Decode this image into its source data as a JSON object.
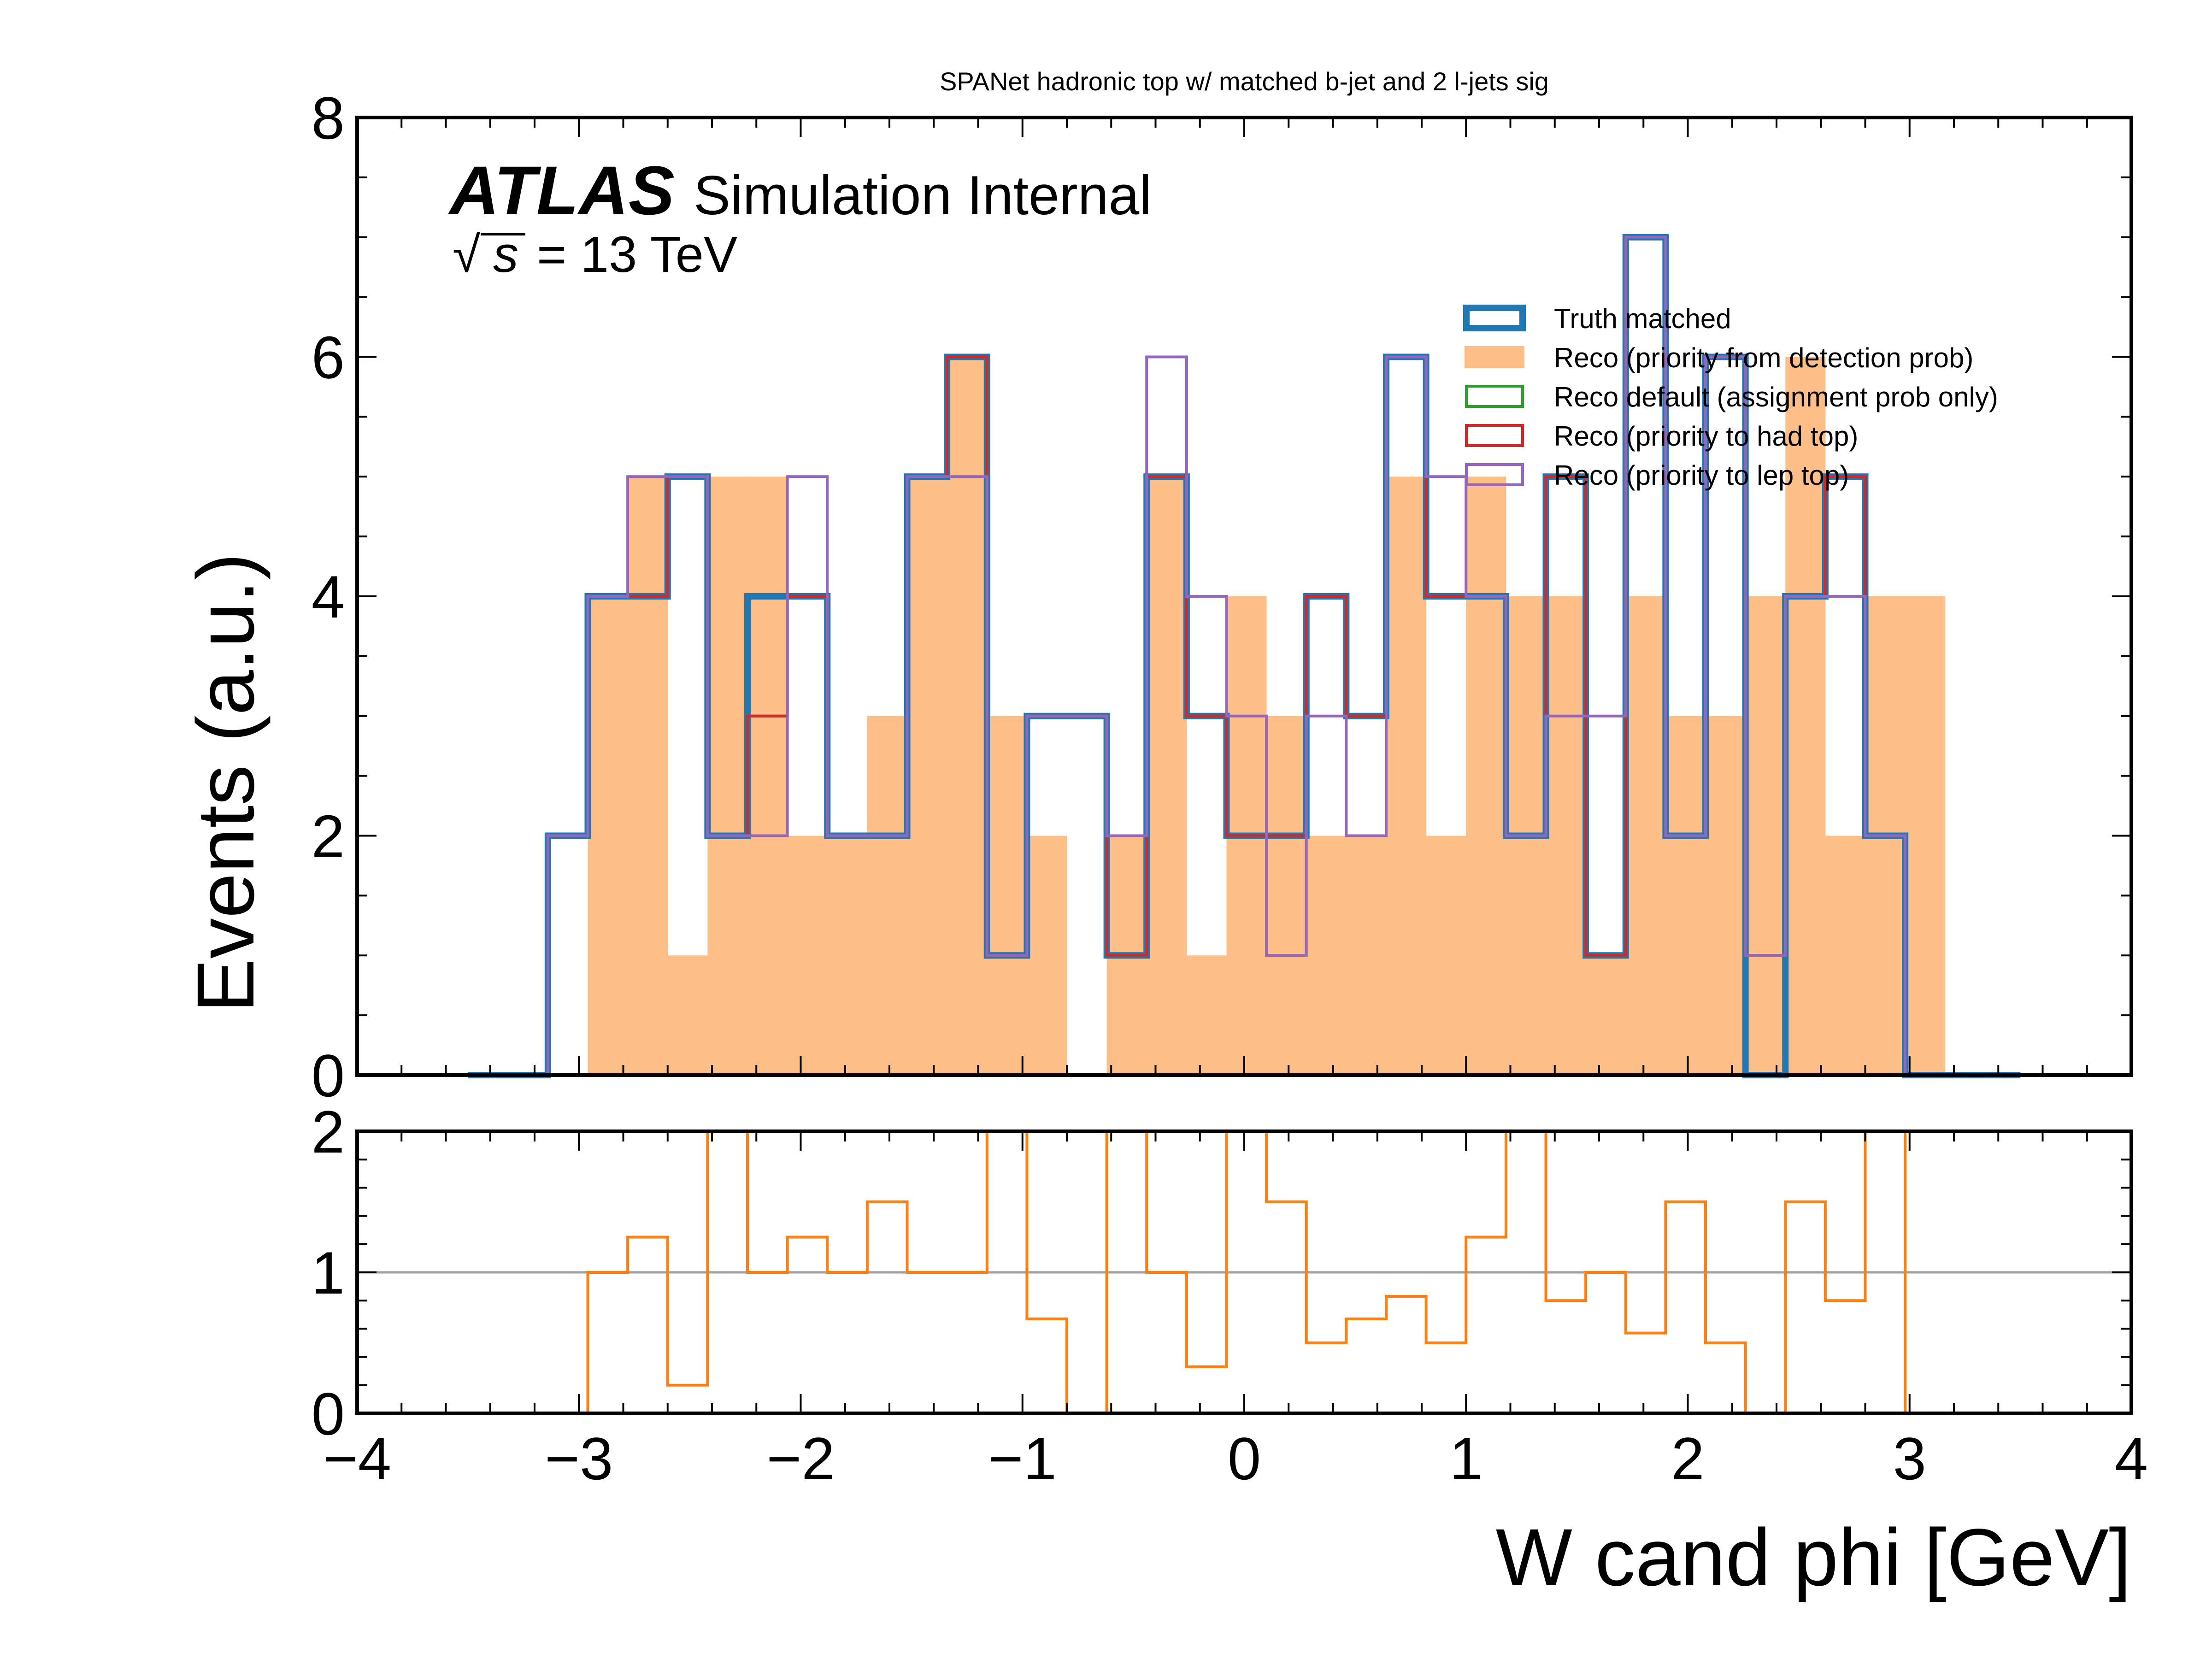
{
  "chart_data": {
    "type": "histogram",
    "title": "SPANet hadronic top w/ matched b-jet and 2 l-jets sig",
    "xlabel": "W cand phi [GeV]",
    "ylabel": "Events (a.u.)",
    "atlas_label": "ATLAS",
    "atlas_sublabel": "Simulation Internal",
    "energy_label": "= 13 TeV",
    "energy_symbol": "s",
    "xlim": [
      -4,
      4
    ],
    "ylim": [
      0,
      8
    ],
    "ratio_ylim": [
      0,
      2
    ],
    "x_ticks": [
      "−4",
      "−3",
      "−2",
      "−1",
      "0",
      "1",
      "2",
      "3",
      "4"
    ],
    "y_ticks": [
      "0",
      "2",
      "4",
      "6",
      "8"
    ],
    "ratio_y_ticks": [
      "0",
      "1",
      "2"
    ],
    "bin_edges": [
      -3.5,
      -3.32,
      -3.14,
      -2.96,
      -2.78,
      -2.6,
      -2.42,
      -2.24,
      -2.06,
      -1.88,
      -1.7,
      -1.52,
      -1.34,
      -1.16,
      -0.98,
      -0.8,
      -0.62,
      -0.44,
      -0.26,
      -0.08,
      0.1,
      0.28,
      0.46,
      0.64,
      0.82,
      1.0,
      1.18,
      1.36,
      1.54,
      1.72,
      1.9,
      2.08,
      2.26,
      2.44,
      2.62,
      2.8,
      2.98,
      3.16,
      3.34,
      3.5
    ],
    "series": [
      {
        "name": "Truth matched",
        "style": "step",
        "color": "#1f77b4",
        "values": [
          0,
          0,
          2,
          4,
          4,
          5,
          2,
          4,
          4,
          2,
          2,
          5,
          6,
          1,
          3,
          3,
          1,
          5,
          3,
          2,
          2,
          4,
          3,
          6,
          4,
          4,
          2,
          5,
          1,
          7,
          2,
          6,
          0,
          4,
          5,
          2,
          0,
          0,
          0
        ]
      },
      {
        "name": "Reco (priority from detection prob)",
        "style": "fill",
        "color": "#fdbf87",
        "values": [
          0,
          0,
          0,
          4,
          5,
          1,
          5,
          5,
          2,
          2,
          3,
          5,
          6,
          3,
          2,
          0,
          2,
          5,
          1,
          4,
          3,
          2,
          2,
          5,
          2,
          5,
          4,
          4,
          1,
          4,
          3,
          3,
          4,
          6,
          2,
          4,
          4,
          0,
          0
        ]
      },
      {
        "name": "Reco default (assignment prob only)",
        "style": "step",
        "color": "#2ca02c",
        "values": [
          0,
          0,
          2,
          4,
          4,
          5,
          2,
          3,
          4,
          2,
          2,
          5,
          6,
          1,
          3,
          3,
          1,
          5,
          3,
          2,
          2,
          4,
          3,
          6,
          4,
          4,
          2,
          5,
          1,
          7,
          2,
          6,
          1,
          4,
          5,
          2,
          0,
          0,
          0
        ]
      },
      {
        "name": "Reco (priority to had top)",
        "style": "step",
        "color": "#d62728",
        "values": [
          0,
          0,
          2,
          4,
          4,
          5,
          2,
          3,
          4,
          2,
          2,
          5,
          6,
          1,
          3,
          3,
          1,
          5,
          3,
          2,
          2,
          4,
          3,
          6,
          4,
          4,
          2,
          5,
          1,
          7,
          2,
          6,
          1,
          4,
          5,
          2,
          0,
          0,
          0
        ]
      },
      {
        "name": "Reco (priority to lep top)",
        "style": "step",
        "color": "#9467bd",
        "values": [
          0,
          0,
          2,
          4,
          5,
          5,
          2,
          2,
          5,
          2,
          2,
          5,
          5,
          1,
          3,
          3,
          2,
          6,
          4,
          3,
          1,
          3,
          2,
          6,
          5,
          4,
          2,
          3,
          3,
          7,
          2,
          6,
          1,
          4,
          4,
          2,
          0,
          0,
          0
        ]
      }
    ],
    "ratio_series": {
      "color": "#ff7f0e",
      "values": [
        0,
        0,
        0,
        1,
        1.25,
        0.2,
        2.5,
        1,
        1.25,
        1,
        1.5,
        1,
        1,
        3,
        0.67,
        0,
        2,
        1,
        0.33,
        2,
        1.5,
        0.5,
        0.67,
        0.83,
        0.5,
        1.25,
        2,
        0.8,
        1,
        0.57,
        1.5,
        0.5,
        0,
        1.5,
        0.8,
        2,
        0,
        0,
        0
      ]
    }
  }
}
